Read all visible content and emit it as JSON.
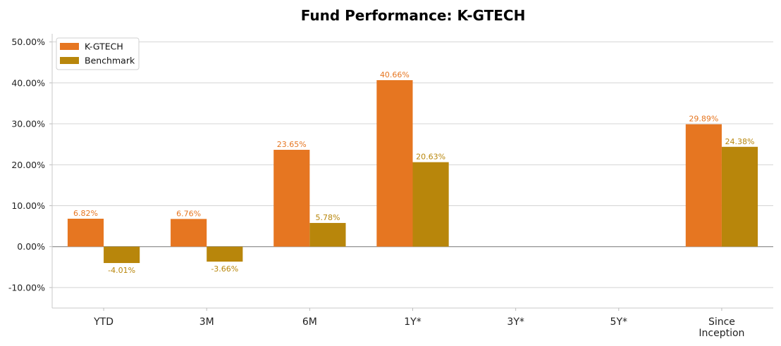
{
  "chart_data": {
    "type": "bar",
    "title": "Fund Performance: K-GTECH",
    "categories": [
      "YTD",
      "3M",
      "6M",
      "1Y*",
      "3Y*",
      "5Y*",
      "Since\nInception"
    ],
    "series": [
      {
        "name": "K-GTECH",
        "color": "#E67621",
        "values": [
          6.82,
          6.76,
          23.65,
          40.66,
          null,
          null,
          29.89
        ],
        "labels": [
          "6.82%",
          "6.76%",
          "23.65%",
          "40.66%",
          null,
          null,
          "29.89%"
        ]
      },
      {
        "name": "Benchmark",
        "color": "#B8860B",
        "values": [
          -4.01,
          -3.66,
          5.78,
          20.63,
          null,
          null,
          24.38
        ],
        "labels": [
          "-4.01%",
          "-3.66%",
          "5.78%",
          "20.63%",
          null,
          null,
          "24.38%"
        ]
      }
    ],
    "yticks": [
      -10,
      0,
      10,
      20,
      30,
      40,
      50
    ],
    "ytick_labels": [
      "-10.00%",
      "0.00%",
      "10.00%",
      "20.00%",
      "30.00%",
      "40.00%",
      "50.00%"
    ],
    "ylim": [
      -15,
      52
    ],
    "grid": true,
    "legend_position": "top-left",
    "xlabel": "",
    "ylabel": ""
  }
}
